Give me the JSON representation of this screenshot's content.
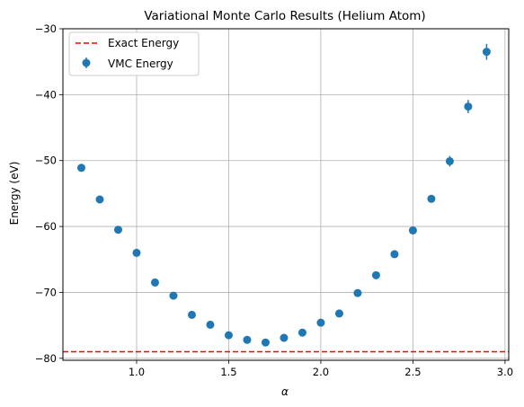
{
  "chart_data": {
    "type": "scatter",
    "title": "Variational Monte Carlo Results (Helium Atom)",
    "xlabel": "α",
    "ylabel": "Energy (eV)",
    "xlim": [
      0.6,
      3.02
    ],
    "ylim": [
      -80.3,
      -30
    ],
    "xticks": [
      1.0,
      1.5,
      2.0,
      2.5,
      3.0
    ],
    "xtick_labels": [
      "1.0",
      "1.5",
      "2.0",
      "2.5",
      "3.0"
    ],
    "yticks": [
      -80,
      -70,
      -60,
      -50,
      -40,
      -30
    ],
    "ytick_labels": [
      "−80",
      "−70",
      "−60",
      "−50",
      "−40",
      "−30"
    ],
    "grid": true,
    "legend": "top-left",
    "series": [
      {
        "name": "VMC Energy",
        "kind": "errorbar",
        "color": "#1f77b4",
        "x": [
          0.7,
          0.8,
          0.9,
          1.0,
          1.1,
          1.2,
          1.3,
          1.4,
          1.5,
          1.6,
          1.7,
          1.8,
          1.9,
          2.0,
          2.1,
          2.2,
          2.3,
          2.4,
          2.5,
          2.6,
          2.7,
          2.8,
          2.9
        ],
        "y": [
          -51.1,
          -55.9,
          -60.5,
          -64.0,
          -68.5,
          -70.5,
          -73.4,
          -74.9,
          -76.5,
          -77.2,
          -77.6,
          -76.9,
          -76.1,
          -74.6,
          -73.2,
          -70.1,
          -67.4,
          -64.2,
          -60.6,
          -55.8,
          -50.1,
          -41.8,
          -33.5
        ],
        "yerr": [
          0.2,
          0.2,
          0.2,
          0.2,
          0.2,
          0.2,
          0.2,
          0.2,
          0.2,
          0.2,
          0.2,
          0.2,
          0.2,
          0.2,
          0.2,
          0.2,
          0.2,
          0.2,
          0.3,
          0.5,
          0.8,
          1.0,
          1.2
        ]
      },
      {
        "name": "Exact Energy",
        "kind": "hline",
        "color": "#ff0000",
        "y": -79.0,
        "linestyle": "dashed"
      }
    ]
  }
}
